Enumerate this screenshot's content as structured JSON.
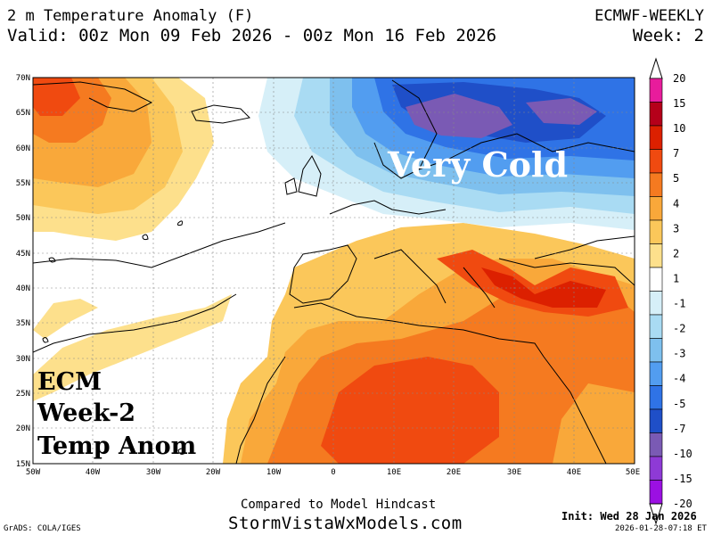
{
  "header": {
    "title": "2 m Temperature Anomaly (F)",
    "valid": "Valid: 00z Mon 09 Feb 2026 - 00z Mon 16 Feb 2026",
    "model": "ECMWF-WEEKLY",
    "week": "Week: 2"
  },
  "map": {
    "lat_labels": [
      "70N",
      "65N",
      "60N",
      "55N",
      "50N",
      "45N",
      "40N",
      "35N",
      "30N",
      "25N",
      "20N",
      "15N"
    ],
    "lon_labels": [
      "50W",
      "40W",
      "30W",
      "20W",
      "10W",
      "0",
      "10E",
      "20E",
      "30E",
      "40E",
      "50E"
    ],
    "annotation_cold": "Very Cold",
    "annotation_box": [
      "ECM",
      "Week-2",
      "Temp Anom"
    ]
  },
  "colorbar": {
    "labels": [
      "20",
      "15",
      "10",
      "7",
      "5",
      "4",
      "3",
      "2",
      "1",
      "-1",
      "-2",
      "-3",
      "-4",
      "-5",
      "-7",
      "-10",
      "-15",
      "-20"
    ],
    "colors": [
      "#e81c9c",
      "#b5001a",
      "#dc2000",
      "#f04a10",
      "#f57a20",
      "#f9a83a",
      "#fbc75a",
      "#fde08c",
      "#ffffff",
      "#d6eff8",
      "#a9dbf3",
      "#7ec0ee",
      "#529df0",
      "#2f73e6",
      "#1f4fc8",
      "#7a5ab4",
      "#8e3ad6",
      "#9b10e2"
    ]
  },
  "footer": {
    "compared": "Compared to Model Hindcast",
    "site": "StormVistaWxModels.com",
    "init": "Init: Wed 28 Jan 2026",
    "stamp": "2026-01-28-07:18 ET",
    "grads": "GrADS: COLA/IGES"
  }
}
